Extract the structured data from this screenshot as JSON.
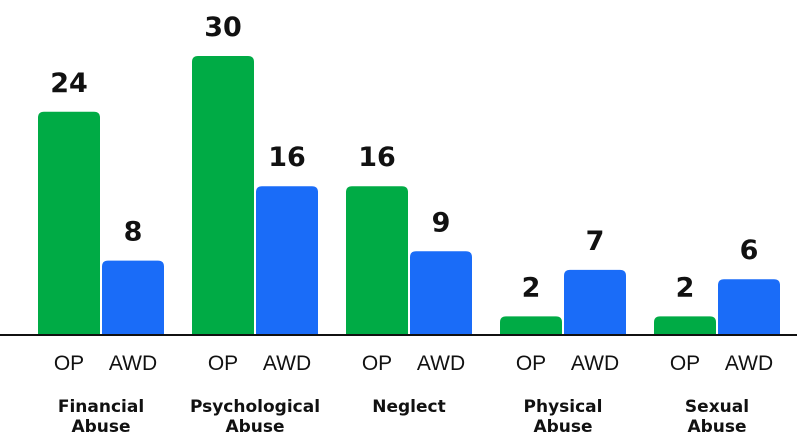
{
  "chart_data": {
    "type": "bar",
    "categories": [
      [
        "Financial",
        "Abuse"
      ],
      [
        "Psychological",
        "Abuse"
      ],
      [
        "Neglect"
      ],
      [
        "Physical",
        "Abuse"
      ],
      [
        "Sexual",
        "Abuse"
      ]
    ],
    "series": [
      {
        "name": "OP",
        "color": "#00ab45",
        "values": [
          24,
          30,
          16,
          2,
          2
        ]
      },
      {
        "name": "AWD",
        "color": "#1a6cf8",
        "values": [
          8,
          16,
          9,
          7,
          6
        ]
      }
    ],
    "ylim": [
      0,
      30
    ],
    "grid": false,
    "legend": "none",
    "title": "",
    "xlabel": "",
    "ylabel": ""
  }
}
